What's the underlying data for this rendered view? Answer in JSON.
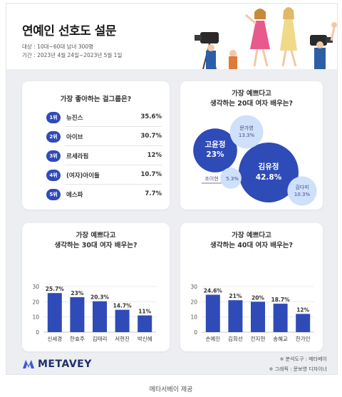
{
  "header": {
    "title": "연예인 선호도 설문",
    "target": "대상 : 10대~60대 남녀 300명",
    "period": "기간 : 2023년 4월 24일~2023년 5월 1일"
  },
  "chart_data": [
    {
      "type": "table",
      "title": "가장 좋아하는 걸그룹은?",
      "rows": [
        {
          "rank": "1위",
          "name": "뉴진스",
          "value": "35.6%"
        },
        {
          "rank": "2위",
          "name": "아이브",
          "value": "30.7%"
        },
        {
          "rank": "3위",
          "name": "르세라핌",
          "value": "12%"
        },
        {
          "rank": "4위",
          "name": "(여자)아이들",
          "value": "10.7%"
        },
        {
          "rank": "5위",
          "name": "에스파",
          "value": "7.7%"
        }
      ]
    },
    {
      "type": "bubble",
      "title_lines": [
        "가장 예쁘다고",
        "생각하는 20대 여자 배우는?"
      ],
      "bubbles": [
        {
          "name": "김유정",
          "value": 42.8,
          "label": "42.8%",
          "color": "#2f4bb8"
        },
        {
          "name": "고윤정",
          "value": 23,
          "label": "23%",
          "color": "#2f4bb8"
        },
        {
          "name": "문가영",
          "value": 13.3,
          "label": "13.3%",
          "color": "#cfe0fb"
        },
        {
          "name": "김다미",
          "value": 10.3,
          "label": "10.3%",
          "color": "#cfe0fb"
        },
        {
          "name": "조이현",
          "value": 5.3,
          "label": "5.3%",
          "color": "#cfe0fb"
        }
      ]
    },
    {
      "type": "bar",
      "title_lines": [
        "가장 예쁘다고",
        "생각하는 30대 여자 배우는?"
      ],
      "categories": [
        "신세경",
        "한효주",
        "김태리",
        "서현진",
        "박신혜"
      ],
      "values": [
        25.7,
        23,
        20.3,
        14.7,
        11
      ],
      "labels": [
        "25.7%",
        "23%",
        "20.3%",
        "14.7%",
        "11%"
      ],
      "yticks": [
        "30",
        "20",
        "10",
        "0"
      ],
      "ylim": [
        0,
        30
      ],
      "color": "#2f4bb8"
    },
    {
      "type": "bar",
      "title_lines": [
        "가장 예쁘다고",
        "생각하는 40대 여자 배우는?"
      ],
      "categories": [
        "손예진",
        "김희선",
        "전지현",
        "송혜교",
        "한가인"
      ],
      "values": [
        24.6,
        21,
        20,
        18.7,
        12
      ],
      "labels": [
        "24.6%",
        "21%",
        "20%",
        "18.7%",
        "12%"
      ],
      "yticks": [
        "30",
        "20",
        "10",
        "0"
      ],
      "ylim": [
        0,
        30
      ],
      "color": "#2f4bb8"
    }
  ],
  "footer": {
    "logo_text": "METAVEY",
    "credit_tool": "※ 분석도구 : 메타베이",
    "credit_graphic": "※ 그래픽 : 문보영 디자이너",
    "caption": "메타서베이 제공"
  }
}
